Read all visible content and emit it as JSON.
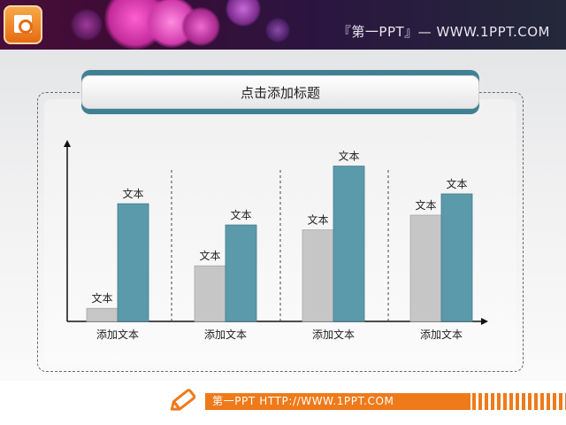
{
  "header": {
    "text": "『第一PPT』— WWW.1PPT.COM"
  },
  "title": "点击添加标题",
  "footer": {
    "text": "第一PPT HTTP://WWW.1PPT.COM"
  },
  "colors": {
    "gray_bar": "#c6c6c6",
    "teal_bar": "#5b9aab",
    "accent_orange": "#ef7a1a",
    "title_band": "#3f8192"
  },
  "chart_data": {
    "type": "bar",
    "title": "",
    "xlabel": "",
    "ylabel": "",
    "categories": [
      "添加文本",
      "添加文本",
      "添加文本",
      "添加文本"
    ],
    "series": [
      {
        "values": [
          0.08,
          0.34,
          0.56,
          0.65
        ],
        "labels": [
          "文本",
          "文本",
          "文本",
          "文本"
        ],
        "color": "#c6c6c6"
      },
      {
        "values": [
          0.72,
          0.59,
          0.95,
          0.78
        ],
        "labels": [
          "文本",
          "文本",
          "文本",
          "文本"
        ],
        "color": "#5b9aab"
      }
    ],
    "ylim": [
      0,
      1
    ],
    "grid": false
  }
}
